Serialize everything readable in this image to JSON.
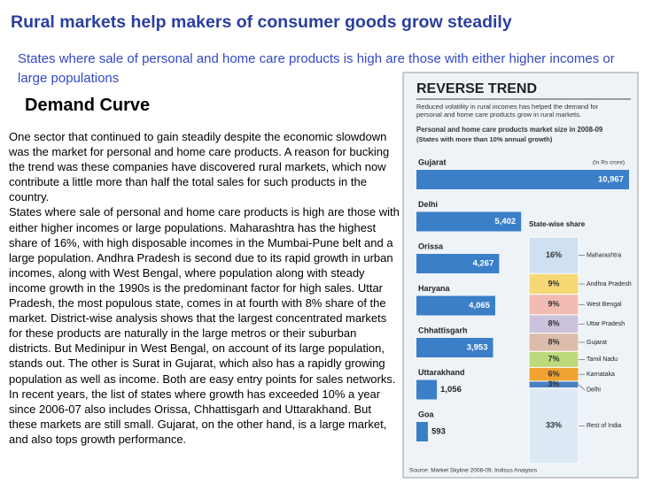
{
  "title": "Rural markets help makers of consumer goods grow steadily",
  "subtitle": "States where sale of personal and home care products is high are those with either higher incomes or large populations",
  "section": "Demand Curve",
  "body": {
    "paragraphs": [
      "One sector that continued to gain steadily despite the economic slowdown was the market for personal and home care products. A reason for bucking the trend was these companies have discovered rural markets, which now contribute a little more than half the total sales for such products in the country.",
      "States where sale of personal and home care products is high are those with either higher incomes or large populations. Maharashtra has the highest share of 16%, with high disposable incomes in the Mumbai-Pune belt and a large population. Andhra Pradesh is second due to its rapid growth in urban incomes, along with West Bengal, where population along with steady income growth in the 1990s is the predominant factor for high sales. Uttar Pradesh, the most populous state, comes in at fourth with 8% share of the market. District-wise analysis shows that the largest concentrated markets for these products are naturally in the large metros or their suburban districts. But Medinipur in West Bengal, on account of its large population, stands out. The other is Surat in Gujarat, which also has a rapidly growing population as well as income. Both are easy entry points for sales networks.",
      "In recent years, the list of states where growth has exceeded 10% a year since 2006-07 also includes Orissa, Chhattisgarh and Uttarakhand. But these markets are still small. Gujarat, on the other hand, is a large market, and also tops growth performance."
    ]
  },
  "infographic": {
    "heading": "REVERSE TREND",
    "blurb": "Reduced volatility in rural incomes has helped the demand for personal and home care products grow in rural markets.",
    "source": "Source: Market Skyline 2008-09, Indicus Analytics"
  },
  "chart_data": [
    {
      "type": "hbar",
      "title": "Personal and home care products market size in 2008-09",
      "subtitle": "(States with more than 10% annual growth)",
      "unit_note": "(In Rs crore)",
      "color": "#3a7fc8",
      "categories": [
        "Gujarat",
        "Delhi",
        "Orissa",
        "Haryana",
        "Chhattisgarh",
        "Uttarakhand",
        "Goa"
      ],
      "values": [
        10967,
        5402,
        4267,
        4065,
        3953,
        1056,
        593
      ],
      "value_labels": [
        "10,967",
        "5,402",
        "4,267",
        "4,065",
        "3,953",
        "1,056",
        "593"
      ]
    },
    {
      "type": "stacked-share",
      "title": "State-wise share",
      "categories": [
        "Maharashtra",
        "Andhra Pradesh",
        "West Bengal",
        "Uttar Pradesh",
        "Gujarat",
        "Tamil Nadu",
        "Karnataka",
        "Delhi",
        "Rest of India"
      ],
      "values": [
        16,
        9,
        9,
        8,
        8,
        7,
        6,
        3,
        33
      ],
      "value_labels": [
        "16%",
        "9%",
        "9%",
        "8%",
        "8%",
        "7%",
        "6%",
        "3%",
        "33%"
      ],
      "colors": [
        "#cfe0f2",
        "#f6d874",
        "#f3bcb2",
        "#cbc2de",
        "#dcbcaa",
        "#bcd97c",
        "#f0a232",
        "#4a7fc2",
        "#dde9f5"
      ]
    }
  ]
}
